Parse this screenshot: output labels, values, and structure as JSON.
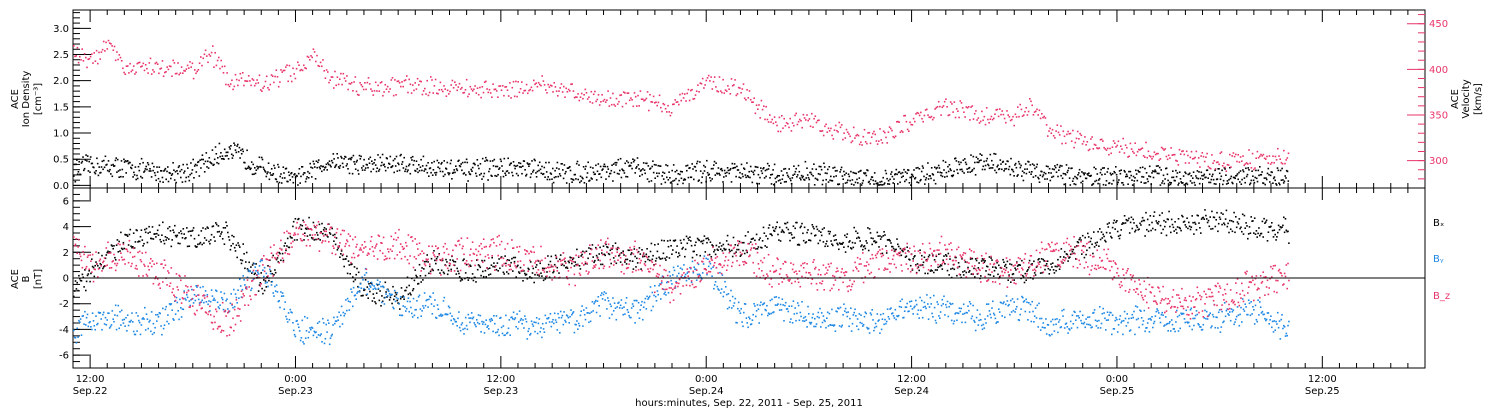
{
  "xaxis": {
    "title": "hours:minutes, Sep. 22, 2011 - Sep. 25, 2011",
    "ticks": [
      {
        "t": 12,
        "time": "12:00",
        "date": "Sep.22"
      },
      {
        "t": 24,
        "time": "0:00",
        "date": "Sep.23"
      },
      {
        "t": 36,
        "time": "12:00",
        "date": "Sep.23"
      },
      {
        "t": 48,
        "time": "0:00",
        "date": "Sep.24"
      },
      {
        "t": 60,
        "time": "12:00",
        "date": "Sep.24"
      },
      {
        "t": 72,
        "time": "0:00",
        "date": "Sep.25"
      },
      {
        "t": 84,
        "time": "12:00",
        "date": "Sep.25"
      }
    ]
  },
  "colors": {
    "black": "#000000",
    "pink": "#e8356a",
    "blue": "#1e88e5"
  },
  "chart_data": [
    {
      "type": "scatter",
      "panel": "top",
      "xrange_hours": [
        11.0,
        90.0
      ],
      "ylabel_left": [
        "ACE",
        "Ion Density",
        "[cm⁻³]"
      ],
      "ylabel_right": [
        "ACE",
        "Velocity",
        "[km/s]"
      ],
      "ylim_left": [
        -0.05,
        3.35
      ],
      "ylim_right": [
        270,
        465
      ],
      "yticks_left": [
        0.0,
        0.5,
        1.0,
        1.5,
        2.0,
        2.5,
        3.0
      ],
      "yticks_right": [
        300,
        350,
        400,
        450
      ],
      "series": [
        {
          "axis": "left",
          "color": "black",
          "x": [
            11,
            12,
            14,
            16,
            18,
            20,
            22,
            24,
            26,
            28,
            30,
            32,
            34,
            36,
            38,
            40,
            42,
            44,
            46,
            48,
            50,
            52,
            54,
            56,
            58,
            60,
            62,
            64,
            66,
            68,
            70,
            72,
            74,
            76,
            78,
            80,
            82
          ],
          "y": [
            0.3,
            0.4,
            0.35,
            0.25,
            0.3,
            0.7,
            0.35,
            0.1,
            0.5,
            0.4,
            0.45,
            0.35,
            0.3,
            0.35,
            0.3,
            0.25,
            0.3,
            0.35,
            0.2,
            0.3,
            0.25,
            0.2,
            0.25,
            0.2,
            0.1,
            0.2,
            0.3,
            0.45,
            0.35,
            0.25,
            0.2,
            0.15,
            0.2,
            0.15,
            0.15,
            0.15,
            0.2
          ]
        },
        {
          "axis": "right",
          "color": "pink",
          "x": [
            11,
            12,
            13,
            14,
            16,
            18,
            19,
            20,
            22,
            24,
            25,
            26,
            28,
            30,
            32,
            34,
            36,
            38,
            40,
            42,
            44,
            46,
            48,
            50,
            52,
            54,
            56,
            58,
            60,
            62,
            64,
            66,
            67,
            68,
            70,
            72,
            74,
            76,
            78,
            80,
            82
          ],
          "y": [
            420,
            410,
            425,
            405,
            400,
            402,
            420,
            390,
            385,
            400,
            415,
            390,
            380,
            382,
            383,
            380,
            378,
            385,
            375,
            370,
            368,
            360,
            385,
            380,
            340,
            345,
            330,
            325,
            345,
            360,
            350,
            350,
            360,
            335,
            320,
            315,
            310,
            305,
            300,
            302,
            305
          ]
        }
      ]
    },
    {
      "type": "scatter",
      "panel": "bottom",
      "xrange_hours": [
        11.0,
        90.0
      ],
      "ylabel_left": [
        "ACE",
        "B",
        "[nT]"
      ],
      "ylim": [
        -7,
        7
      ],
      "yticks": [
        -6,
        -4,
        -2,
        0,
        2,
        4,
        6
      ],
      "zero_line": true,
      "legend_position": "right",
      "series": [
        {
          "name": "Bₓ",
          "color": "black",
          "x": [
            11,
            12,
            14,
            16,
            18,
            20,
            22,
            24,
            26,
            28,
            30,
            32,
            34,
            36,
            38,
            40,
            42,
            44,
            46,
            48,
            50,
            52,
            54,
            56,
            58,
            60,
            62,
            64,
            66,
            68,
            70,
            72,
            74,
            76,
            78,
            80,
            82
          ],
          "y": [
            -1,
            0.5,
            3,
            3.5,
            3.2,
            3.5,
            -0.5,
            4,
            3.5,
            -1,
            -1.5,
            1.5,
            0.5,
            1,
            0.5,
            1.5,
            2,
            1.5,
            2.5,
            2.5,
            2.5,
            3.5,
            3.5,
            3,
            3,
            1.5,
            1,
            1,
            0.5,
            1,
            2.5,
            4,
            4.3,
            4.2,
            4.5,
            4,
            3.8
          ]
        },
        {
          "name": "Bᵧ",
          "color": "blue",
          "x": [
            11,
            12,
            14,
            16,
            18,
            20,
            22,
            24,
            26,
            28,
            30,
            32,
            34,
            36,
            38,
            40,
            42,
            44,
            46,
            48,
            50,
            52,
            54,
            56,
            58,
            60,
            62,
            64,
            66,
            68,
            70,
            72,
            74,
            76,
            78,
            80,
            82
          ],
          "y": [
            -4.5,
            -3,
            -3.2,
            -3.5,
            -1,
            -2,
            1,
            -4,
            -4.2,
            0,
            -2,
            -2,
            -3.5,
            -3.7,
            -3.5,
            -3.5,
            -2,
            -2.5,
            0,
            1,
            -3,
            -2,
            -3,
            -3,
            -3.5,
            -2,
            -2.5,
            -3,
            -2,
            -3.5,
            -3,
            -3.5,
            -3,
            -3.2,
            -3,
            -2.5,
            -4
          ]
        },
        {
          "name": "B_z",
          "color": "pink",
          "x": [
            11,
            12,
            14,
            16,
            18,
            20,
            22,
            24,
            26,
            28,
            30,
            32,
            34,
            36,
            38,
            40,
            42,
            44,
            46,
            48,
            50,
            52,
            54,
            56,
            58,
            60,
            62,
            64,
            66,
            68,
            70,
            72,
            74,
            76,
            78,
            80,
            82
          ],
          "y": [
            2.5,
            1,
            2,
            0.5,
            -1.5,
            -3.5,
            0.5,
            3.5,
            3,
            2,
            2.5,
            1.5,
            2,
            2,
            1.5,
            0.5,
            2,
            1.5,
            -1,
            1,
            2,
            0.5,
            0.5,
            0,
            1.5,
            1.5,
            2,
            1,
            0.5,
            2,
            2,
            0.5,
            -1.5,
            -2,
            -1.5,
            -0.5,
            0.5
          ]
        }
      ]
    }
  ]
}
